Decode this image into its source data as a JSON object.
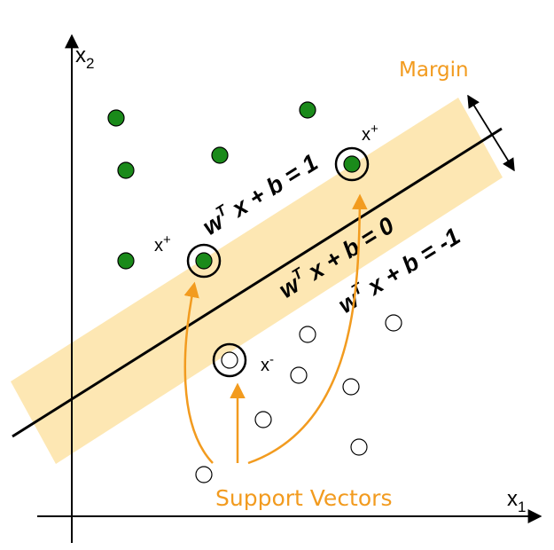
{
  "axes": {
    "x_label": "x",
    "x_sub": "1",
    "y_label": "x",
    "y_sub": "2"
  },
  "margin_label": "Margin",
  "support_vectors_label": "Support Vectors",
  "equations": {
    "positive": {
      "lhs": "w",
      "sup": "T",
      "rhs": " x + b = 1"
    },
    "boundary": {
      "lhs": "w",
      "sup": "T",
      "rhs": " x + b = 0"
    },
    "negative": {
      "lhs": "w",
      "sup": "T",
      "rhs": " x + b = -1"
    }
  },
  "point_labels": {
    "xplus_top": {
      "base": "x",
      "sup": "+"
    },
    "xplus_left": {
      "base": "x",
      "sup": "+"
    },
    "xminus": {
      "base": "x",
      "sup": "-"
    }
  },
  "colors": {
    "positive_fill": "#1a8a1a",
    "negative_fill": "#ffffff",
    "margin_band": "#fde7b3",
    "accent_orange": "#f29b1f",
    "line": "#000000"
  }
}
